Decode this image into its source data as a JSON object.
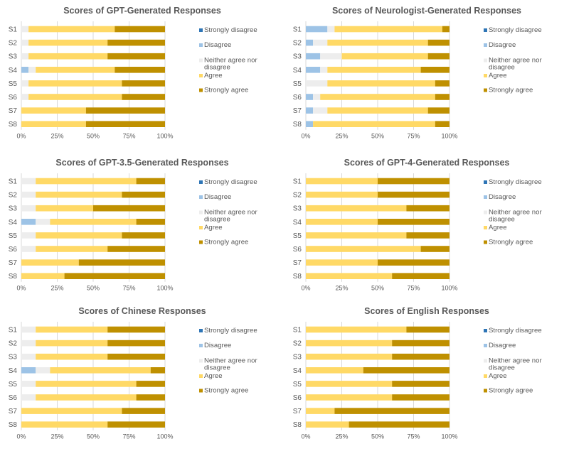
{
  "colors": {
    "Strongly disagree": "#2e75b6",
    "Disagree": "#9dc3e6",
    "Neither agree nor disagree": "#ededed",
    "Agree": "#ffd966",
    "Strongly agree": "#bf9000",
    "title_text": "#595959",
    "axis_text": "#595959",
    "gridline": "#d9d9d9"
  },
  "legend_labels": [
    "Strongly disagree",
    "Disagree",
    "Neither agree nor disagree",
    "Agree",
    "Strongly agree"
  ],
  "chart_data": [
    {
      "type": "bar",
      "orientation": "horizontal",
      "stacked": "percent",
      "title": "Scores of GPT-Generated Responses",
      "categories": [
        "S1",
        "S2",
        "S3",
        "S4",
        "S5",
        "S6",
        "S7",
        "S8"
      ],
      "x_ticks": [
        "0%",
        "25%",
        "50%",
        "75%",
        "100%"
      ],
      "xlim": [
        0,
        100
      ],
      "series": [
        {
          "name": "Strongly disagree",
          "values": [
            0,
            0,
            0,
            0,
            0,
            0,
            0,
            0
          ]
        },
        {
          "name": "Disagree",
          "values": [
            0,
            0,
            0,
            5,
            0,
            0,
            0,
            0
          ]
        },
        {
          "name": "Neither agree nor disagree",
          "values": [
            5,
            5,
            5,
            5,
            5,
            5,
            0,
            0
          ]
        },
        {
          "name": "Agree",
          "values": [
            60,
            55,
            55,
            55,
            65,
            65,
            45,
            45
          ]
        },
        {
          "name": "Strongly agree",
          "values": [
            35,
            40,
            40,
            35,
            30,
            30,
            55,
            55
          ]
        }
      ],
      "legend": "right"
    },
    {
      "type": "bar",
      "orientation": "horizontal",
      "stacked": "percent",
      "title": "Scores of Neurologist-Generated Responses",
      "categories": [
        "S1",
        "S2",
        "S3",
        "S4",
        "S5",
        "S6",
        "S7",
        "S8"
      ],
      "x_ticks": [
        "0%",
        "25%",
        "50%",
        "75%",
        "100%"
      ],
      "xlim": [
        0,
        100
      ],
      "series": [
        {
          "name": "Strongly disagree",
          "values": [
            0,
            0,
            0,
            0,
            0,
            0,
            0,
            0
          ]
        },
        {
          "name": "Disagree",
          "values": [
            15,
            5,
            10,
            10,
            0,
            5,
            5,
            5
          ]
        },
        {
          "name": "Neither agree nor disagree",
          "values": [
            5,
            10,
            15,
            5,
            15,
            5,
            10,
            0
          ]
        },
        {
          "name": "Agree",
          "values": [
            75,
            70,
            60,
            65,
            75,
            80,
            70,
            85
          ]
        },
        {
          "name": "Strongly agree",
          "values": [
            5,
            15,
            15,
            20,
            10,
            10,
            15,
            10
          ]
        }
      ],
      "legend": "right"
    },
    {
      "type": "bar",
      "orientation": "horizontal",
      "stacked": "percent",
      "title": "Scores of GPT-3.5-Generated Responses",
      "categories": [
        "S1",
        "S2",
        "S3",
        "S4",
        "S5",
        "S6",
        "S7",
        "S8"
      ],
      "x_ticks": [
        "0%",
        "25%",
        "50%",
        "75%",
        "100%"
      ],
      "xlim": [
        0,
        100
      ],
      "series": [
        {
          "name": "Strongly disagree",
          "values": [
            0,
            0,
            0,
            0,
            0,
            0,
            0,
            0
          ]
        },
        {
          "name": "Disagree",
          "values": [
            0,
            0,
            0,
            10,
            0,
            0,
            0,
            0
          ]
        },
        {
          "name": "Neither agree nor disagree",
          "values": [
            10,
            10,
            10,
            10,
            10,
            10,
            0,
            0
          ]
        },
        {
          "name": "Agree",
          "values": [
            70,
            60,
            40,
            60,
            60,
            50,
            40,
            30
          ]
        },
        {
          "name": "Strongly agree",
          "values": [
            20,
            30,
            50,
            20,
            30,
            40,
            60,
            70
          ]
        }
      ],
      "legend": "right"
    },
    {
      "type": "bar",
      "orientation": "horizontal",
      "stacked": "percent",
      "title": "Scores of GPT-4-Generated Responses",
      "categories": [
        "S1",
        "S2",
        "S3",
        "S4",
        "S5",
        "S6",
        "S7",
        "S8"
      ],
      "x_ticks": [
        "0%",
        "25%",
        "50%",
        "75%",
        "100%"
      ],
      "xlim": [
        0,
        100
      ],
      "series": [
        {
          "name": "Strongly disagree",
          "values": [
            0,
            0,
            0,
            0,
            0,
            0,
            0,
            0
          ]
        },
        {
          "name": "Disagree",
          "values": [
            0,
            0,
            0,
            0,
            0,
            0,
            0,
            0
          ]
        },
        {
          "name": "Neither agree nor disagree",
          "values": [
            0,
            0,
            0,
            0,
            0,
            0,
            0,
            0
          ]
        },
        {
          "name": "Agree",
          "values": [
            50,
            50,
            70,
            50,
            70,
            80,
            50,
            60
          ]
        },
        {
          "name": "Strongly agree",
          "values": [
            50,
            50,
            30,
            50,
            30,
            20,
            50,
            40
          ]
        }
      ],
      "legend": "right"
    },
    {
      "type": "bar",
      "orientation": "horizontal",
      "stacked": "percent",
      "title": "Scores of Chinese Responses",
      "categories": [
        "S1",
        "S2",
        "S3",
        "S4",
        "S5",
        "S6",
        "S7",
        "S8"
      ],
      "x_ticks": [
        "0%",
        "25%",
        "50%",
        "75%",
        "100%"
      ],
      "xlim": [
        0,
        100
      ],
      "series": [
        {
          "name": "Strongly disagree",
          "values": [
            0,
            0,
            0,
            0,
            0,
            0,
            0,
            0
          ]
        },
        {
          "name": "Disagree",
          "values": [
            0,
            0,
            0,
            10,
            0,
            0,
            0,
            0
          ]
        },
        {
          "name": "Neither agree nor disagree",
          "values": [
            10,
            10,
            10,
            10,
            10,
            10,
            0,
            0
          ]
        },
        {
          "name": "Agree",
          "values": [
            50,
            50,
            50,
            70,
            70,
            70,
            70,
            60
          ]
        },
        {
          "name": "Strongly agree",
          "values": [
            40,
            40,
            40,
            10,
            20,
            20,
            30,
            40
          ]
        }
      ],
      "legend": "right"
    },
    {
      "type": "bar",
      "orientation": "horizontal",
      "stacked": "percent",
      "title": "Scores of English Responses",
      "categories": [
        "S1",
        "S2",
        "S3",
        "S4",
        "S5",
        "S6",
        "S7",
        "S8"
      ],
      "x_ticks": [
        "0%",
        "25%",
        "50%",
        "75%",
        "100%"
      ],
      "xlim": [
        0,
        100
      ],
      "series": [
        {
          "name": "Strongly disagree",
          "values": [
            0,
            0,
            0,
            0,
            0,
            0,
            0,
            0
          ]
        },
        {
          "name": "Disagree",
          "values": [
            0,
            0,
            0,
            0,
            0,
            0,
            0,
            0
          ]
        },
        {
          "name": "Neither agree nor disagree",
          "values": [
            0,
            0,
            0,
            0,
            0,
            0,
            0,
            0
          ]
        },
        {
          "name": "Agree",
          "values": [
            70,
            60,
            60,
            40,
            60,
            60,
            20,
            30
          ]
        },
        {
          "name": "Strongly agree",
          "values": [
            30,
            40,
            40,
            60,
            40,
            40,
            80,
            70
          ]
        }
      ],
      "legend": "right"
    }
  ]
}
